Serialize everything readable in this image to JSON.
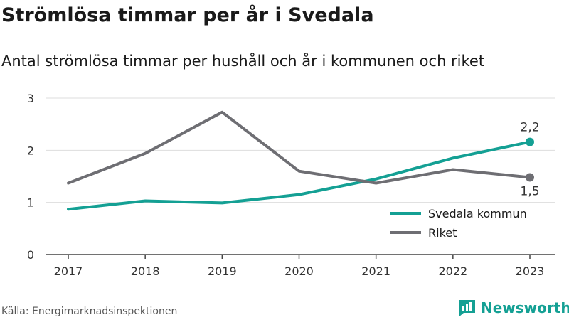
{
  "title": "Strömlösa timmar per år i Svedala",
  "subtitle": "Antal strömlösa timmar per hushåll och år i kommunen och riket",
  "source": "Källa: Energimarknadsinspektionen",
  "brand": "Newsworthy",
  "colors": {
    "svedala": "#14a094",
    "riket": "#6e6e73",
    "grid": "#dddddd",
    "brand": "#14a094"
  },
  "chart_data": {
    "type": "line",
    "x": [
      "2017",
      "2018",
      "2019",
      "2020",
      "2021",
      "2022",
      "2023"
    ],
    "ylim": [
      0,
      3
    ],
    "yticks": [
      0,
      1,
      2,
      3
    ],
    "grid": true,
    "legend_placement": "bottom-right",
    "series": [
      {
        "name": "Svedala kommun",
        "values": [
          0.87,
          1.03,
          0.99,
          1.15,
          1.45,
          1.85,
          2.16
        ],
        "end_label": "2,2"
      },
      {
        "name": "Riket",
        "values": [
          1.37,
          1.94,
          2.73,
          1.6,
          1.37,
          1.63,
          1.48
        ],
        "end_label": "1,5"
      }
    ]
  }
}
